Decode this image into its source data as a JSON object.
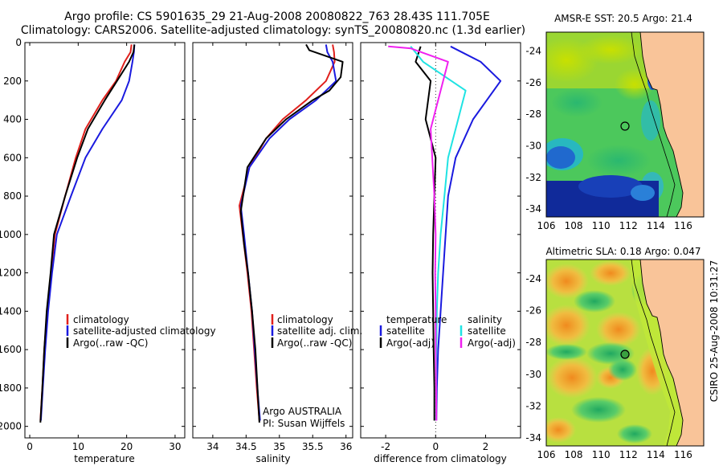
{
  "header": {
    "line1": "Argo profile: CS 5901635_29 21-Aug-2008 20080822_763 28.43S 111.705E",
    "line2": "Climatology: CARS2006. Satellite-adjusted climatology: synTS_20080820.nc (1.3d earlier)"
  },
  "colors": {
    "climatology": "#e0201c",
    "satellite": "#1a1adf",
    "argo": "#000000",
    "salinity_sat": "#1fe3e3",
    "salinity_argo": "#f020f0",
    "land": "#f9c499"
  },
  "chart_data": [
    {
      "type": "line",
      "id": "temperature",
      "xlabel": "temperature",
      "ylabel": "",
      "xlim": [
        -1,
        32
      ],
      "ylim": [
        2060,
        0
      ],
      "x_ticks": [
        0,
        10,
        20,
        30
      ],
      "y_ticks": [
        0,
        200,
        400,
        600,
        800,
        1000,
        1200,
        1400,
        1600,
        1800,
        2000
      ],
      "legend": [
        "climatology",
        "satellite-adjusted climatology",
        "Argo(..raw -QC)"
      ],
      "series": [
        {
          "name": "climatology",
          "color": "#e0201c",
          "x": [
            21.0,
            20.8,
            19.6,
            17.8,
            15.0,
            11.5,
            9.5,
            7.3,
            5.2,
            4.4,
            3.6,
            3.0,
            2.6,
            2.2
          ],
          "y": [
            10,
            50,
            100,
            200,
            300,
            450,
            600,
            800,
            1000,
            1200,
            1400,
            1600,
            1800,
            1970
          ]
        },
        {
          "name": "satellite-adjusted climatology",
          "color": "#1a1adf",
          "x": [
            21.6,
            21.5,
            21.2,
            20.5,
            19.0,
            15.0,
            11.5,
            8.5,
            5.6,
            4.6,
            3.8,
            3.2,
            2.7,
            2.3
          ],
          "y": [
            10,
            50,
            100,
            200,
            300,
            450,
            600,
            800,
            1000,
            1200,
            1400,
            1600,
            1800,
            1970
          ]
        },
        {
          "name": "Argo(..raw -QC)",
          "color": "#000000",
          "x": [
            21.6,
            21.4,
            20.5,
            18.0,
            15.5,
            12.0,
            9.8,
            7.3,
            5.0,
            4.3,
            3.5,
            3.0,
            2.6,
            2.2
          ],
          "y": [
            10,
            50,
            100,
            200,
            300,
            450,
            600,
            800,
            1000,
            1200,
            1400,
            1600,
            1800,
            1980
          ]
        }
      ]
    },
    {
      "type": "line",
      "id": "salinity",
      "xlabel": "salinity",
      "ylabel": "",
      "xlim": [
        33.7,
        36.1
      ],
      "ylim": [
        2060,
        0
      ],
      "x_ticks": [
        34,
        34.5,
        35,
        35.5,
        36
      ],
      "legend": [
        "climatology",
        "satellite adj. clim.",
        "Argo(..raw -QC)"
      ],
      "annotations": [
        "Argo AUSTRALIA",
        "PI: Susan Wijffels"
      ],
      "series": [
        {
          "name": "climatology",
          "color": "#e0201c",
          "x": [
            35.8,
            35.82,
            35.83,
            35.7,
            35.4,
            35.05,
            34.8,
            34.55,
            34.4,
            34.45,
            34.52,
            34.58,
            34.62,
            34.66,
            34.7
          ],
          "y": [
            10,
            50,
            100,
            200,
            300,
            400,
            500,
            650,
            850,
            1000,
            1200,
            1400,
            1600,
            1800,
            1970
          ]
        },
        {
          "name": "satellite adj. clim.",
          "color": "#1a1adf",
          "x": [
            35.7,
            35.72,
            35.8,
            35.85,
            35.55,
            35.15,
            34.85,
            34.55,
            34.42,
            34.47,
            34.53,
            34.59,
            34.63,
            34.67,
            34.71
          ],
          "y": [
            10,
            50,
            100,
            200,
            300,
            400,
            500,
            650,
            850,
            1000,
            1200,
            1400,
            1600,
            1800,
            1970
          ]
        },
        {
          "name": "Argo(..raw -QC)",
          "color": "#000000",
          "x": [
            35.4,
            35.45,
            35.95,
            35.92,
            35.75,
            35.5,
            35.1,
            34.8,
            34.52,
            34.42,
            34.47,
            34.53,
            34.59,
            34.64,
            34.7
          ],
          "y": [
            10,
            40,
            100,
            180,
            250,
            300,
            400,
            500,
            650,
            880,
            1050,
            1200,
            1400,
            1600,
            1980
          ]
        }
      ]
    },
    {
      "type": "line",
      "id": "difference",
      "xlabel": "difference from climatology",
      "ylabel": "",
      "xlim": [
        -3.0,
        3.4
      ],
      "ylim": [
        2060,
        0
      ],
      "x_ticks": [
        -2,
        0,
        2
      ],
      "legend_left_title": "temperature",
      "legend_right_title": "salinity",
      "legend": [
        "satellite",
        "Argo(-adj)",
        "satellite",
        "Argo(-adj)"
      ],
      "series": [
        {
          "name": "satellite",
          "quantity": "temperature",
          "color": "#1a1adf",
          "x": [
            0.6,
            1.8,
            2.6,
            1.5,
            0.8,
            0.5,
            0.4,
            0.3,
            0.2,
            0.1,
            0.05,
            0.03
          ],
          "y": [
            20,
            100,
            200,
            400,
            600,
            800,
            1000,
            1200,
            1400,
            1600,
            1800,
            1970
          ]
        },
        {
          "name": "Argo(-adj)",
          "quantity": "temperature",
          "color": "#000000",
          "x": [
            -0.6,
            -0.8,
            -0.2,
            -0.4,
            0.0,
            -0.05,
            -0.1,
            -0.12,
            -0.1,
            -0.08,
            -0.05,
            -0.05
          ],
          "y": [
            20,
            100,
            200,
            400,
            600,
            800,
            1000,
            1200,
            1400,
            1600,
            1800,
            1970
          ]
        },
        {
          "name": "satellite",
          "quantity": "salinity",
          "color": "#1fe3e3",
          "x": [
            -1.0,
            -0.5,
            1.2,
            0.8,
            0.5,
            0.35,
            0.2,
            0.1,
            0.05,
            0.03,
            0.02,
            0.02
          ],
          "y": [
            20,
            100,
            250,
            450,
            600,
            800,
            1000,
            1200,
            1400,
            1600,
            1800,
            1970
          ]
        },
        {
          "name": "Argo(-adj)",
          "quantity": "salinity",
          "color": "#f020f0",
          "x": [
            -1.9,
            -1.0,
            0.5,
            0.2,
            -0.2,
            -0.05,
            0.0,
            -0.02,
            0.0,
            0.0,
            0.02,
            0.03
          ],
          "y": [
            20,
            30,
            100,
            250,
            450,
            800,
            1000,
            1200,
            1400,
            1600,
            1800,
            1970
          ]
        }
      ]
    },
    {
      "type": "heatmap",
      "id": "sst_map",
      "title": "AMSR-E SST: 20.5  Argo: 21.4",
      "xlim": [
        106,
        117.5
      ],
      "ylim": [
        -34.5,
        -22.8
      ],
      "x_ticks": [
        106,
        108,
        110,
        112,
        114,
        116
      ],
      "y_ticks": [
        -24,
        -26,
        -28,
        -30,
        -32,
        -34
      ],
      "marker": {
        "lon": 111.705,
        "lat": -28.43
      }
    },
    {
      "type": "heatmap",
      "id": "sla_map",
      "title": "Altimetric SLA: 0.18  Argo: 0.047",
      "xlim": [
        106,
        117.5
      ],
      "ylim": [
        -34.5,
        -22.8
      ],
      "x_ticks": [
        106,
        108,
        110,
        112,
        114,
        116
      ],
      "y_ticks": [
        -24,
        -26,
        -28,
        -30,
        -32,
        -34
      ],
      "marker": {
        "lon": 111.705,
        "lat": -28.43
      }
    }
  ],
  "footer_vertical": "CSIRO 25-Aug-2008 10:31:27"
}
